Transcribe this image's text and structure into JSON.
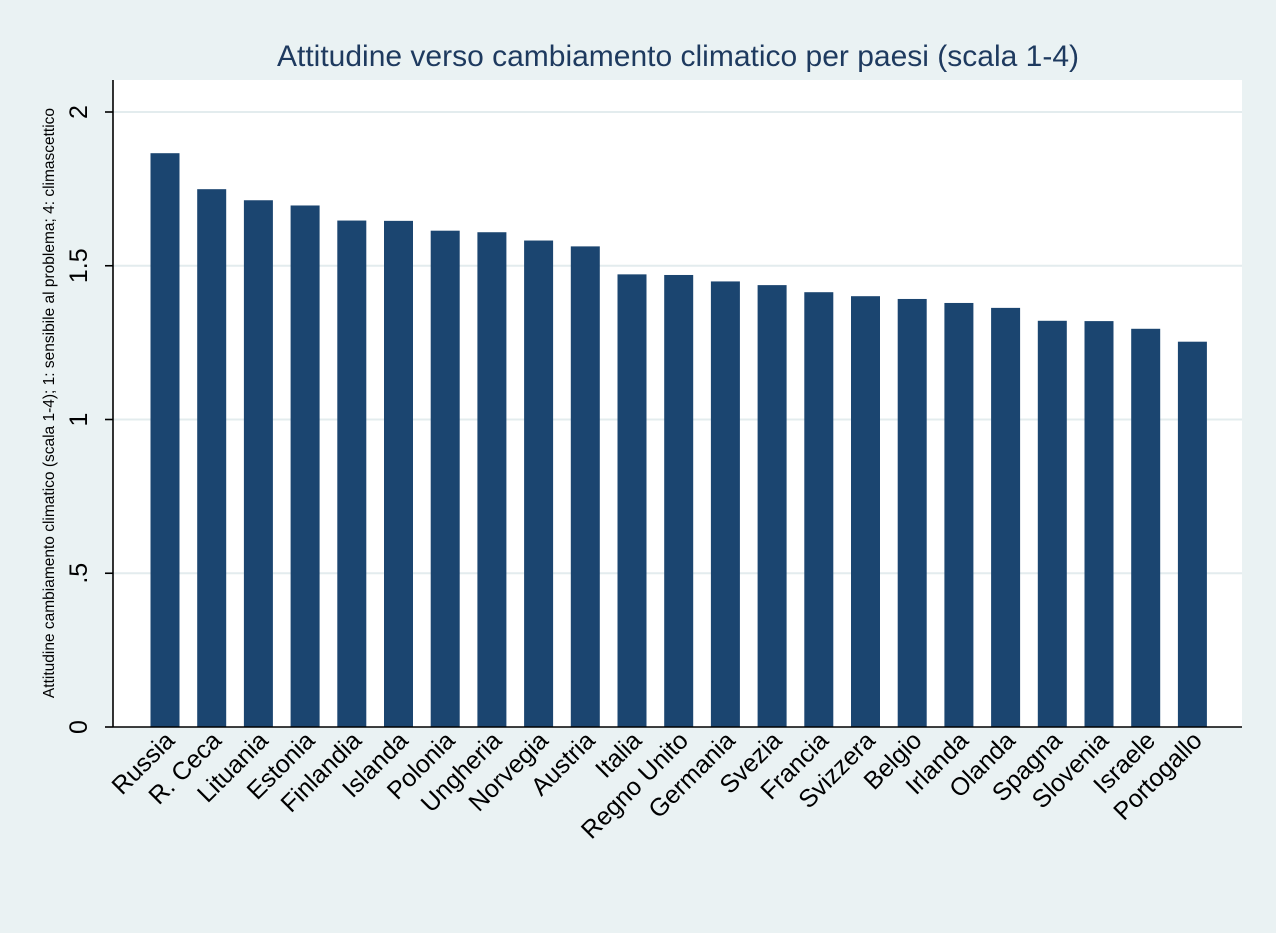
{
  "chart_data": {
    "type": "bar",
    "title": "Attitudine verso cambiamento climatico per paesi (scala 1-4)",
    "xlabel": "",
    "ylabel": "Attitudine cambiamento climatico (scala 1-4); 1: sensibile al problema; 4: climascettico",
    "ylim": [
      0,
      2.1
    ],
    "yticks": [
      0,
      0.5,
      1,
      1.5,
      2
    ],
    "ytick_labels": [
      "0",
      ".5",
      "1",
      "1.5",
      "2"
    ],
    "grid": true,
    "bar_color": "#1b4570",
    "categories": [
      "Russia",
      "R. Ceca",
      "Lituania",
      "Estonia",
      "Finlandia",
      "Islanda",
      "Polonia",
      "Ungheria",
      "Norvegia",
      "Austria",
      "Italia",
      "Regno Unito",
      "Germania",
      "Svezia",
      "Francia",
      "Svizzera",
      "Belgio",
      "Irlanda",
      "Olanda",
      "Spagna",
      "Slovenia",
      "Israele",
      "Portogallo"
    ],
    "values": [
      1.866,
      1.749,
      1.713,
      1.696,
      1.647,
      1.646,
      1.614,
      1.609,
      1.582,
      1.563,
      1.472,
      1.47,
      1.449,
      1.437,
      1.414,
      1.401,
      1.392,
      1.379,
      1.363,
      1.321,
      1.32,
      1.295,
      1.253
    ]
  }
}
